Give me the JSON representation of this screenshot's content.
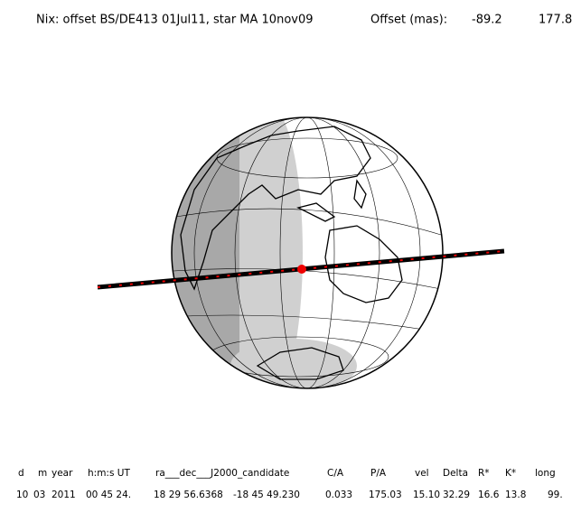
{
  "header": {
    "title": "Nix: offset BS/DE413 01Jul11, star MA 10nov09",
    "offset_label": "Offset (mas):",
    "offset_values": [
      "-89.2",
      "177.8"
    ]
  },
  "table": {
    "columns": [
      "d",
      "m",
      "year",
      "h:m:s UT",
      "ra___dec___J2000_candidate",
      "C/A",
      "P/A",
      "vel",
      "Delta",
      "R*",
      "K*",
      "long"
    ],
    "values": [
      "10",
      "03",
      "2011",
      "00 45 24.",
      "18 29 56.6368",
      "-18 45 49.230",
      "0.033",
      "175.03",
      "15.10",
      "32.29",
      "16.6",
      "13.8",
      "99."
    ]
  }
}
